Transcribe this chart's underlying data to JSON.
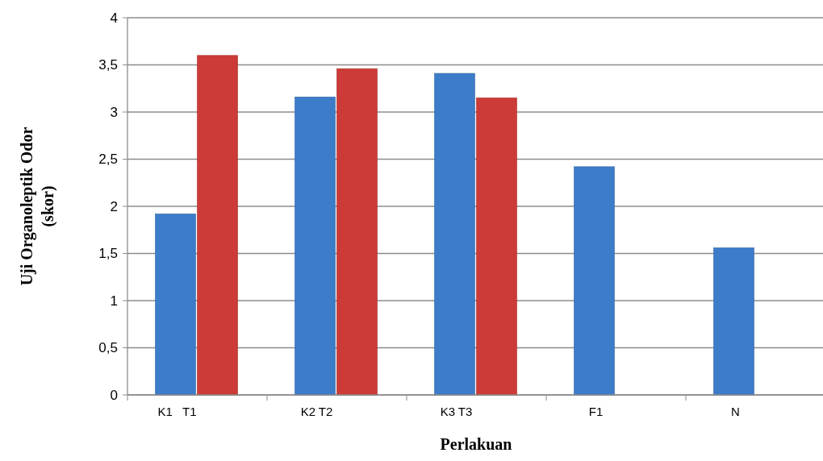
{
  "chart_data": {
    "type": "bar",
    "xlabel": "Perlakuan",
    "ylabel": "Uji Organoleptik Odor (skor)",
    "categories": [
      "K1   T1",
      "K2 T2",
      "K3 T3",
      "F1",
      "N"
    ],
    "series": [
      {
        "color": "#3d7cc9",
        "values": [
          1.92,
          3.16,
          3.41,
          2.42,
          1.56
        ]
      },
      {
        "color": "#cc3b37",
        "values": [
          3.6,
          3.46,
          3.15,
          null,
          null
        ]
      }
    ],
    "ylim": [
      0,
      4
    ],
    "yticks": [
      0,
      {
        "value": 0.5,
        "label": "0,5"
      },
      1,
      {
        "value": 1.5,
        "label": "1,5"
      },
      2,
      {
        "value": 2.5,
        "label": "2,5"
      },
      3,
      {
        "value": 3.5,
        "label": "3,5"
      },
      4
    ],
    "grid": "y"
  }
}
